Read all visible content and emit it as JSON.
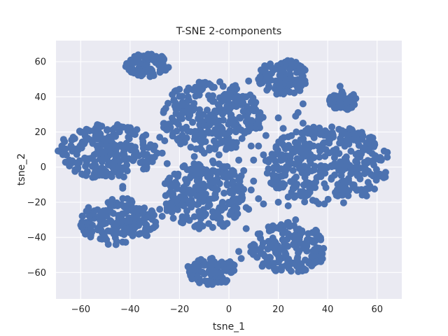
{
  "chart_data": {
    "type": "scatter",
    "title": "T-SNE 2-components",
    "xlabel": "tsne_1",
    "ylabel": "tsne_2",
    "xlim": [
      -70,
      70
    ],
    "ylim": [
      -75,
      72
    ],
    "xticks": [
      -60,
      -40,
      -20,
      0,
      20,
      40,
      60
    ],
    "yticks": [
      -60,
      -40,
      -20,
      0,
      20,
      40,
      60
    ],
    "grid": true,
    "legend": "none",
    "background_color": "#eaeaf2",
    "point_color": "#4c72b0",
    "clusters": [
      {
        "cx": -33,
        "cy": 58,
        "rx": 8,
        "ry": 6
      },
      {
        "cx": -49,
        "cy": 9,
        "rx": 18,
        "ry": 14
      },
      {
        "cx": -45,
        "cy": -31,
        "rx": 14,
        "ry": 12
      },
      {
        "cx": -7,
        "cy": 29,
        "rx": 19,
        "ry": 18
      },
      {
        "cx": -10,
        "cy": -16,
        "rx": 15,
        "ry": 18
      },
      {
        "cx": -7,
        "cy": -59,
        "rx": 9,
        "ry": 7
      },
      {
        "cx": 22,
        "cy": 51,
        "rx": 9,
        "ry": 9
      },
      {
        "cx": 46,
        "cy": 38,
        "rx": 5,
        "ry": 5
      },
      {
        "cx": 40,
        "cy": 1,
        "rx": 23,
        "ry": 20
      },
      {
        "cx": 24,
        "cy": -46,
        "rx": 14,
        "ry": 13
      }
    ],
    "bridge_points": [
      [
        -28,
        17
      ],
      [
        -30,
        12
      ],
      [
        -27,
        8
      ],
      [
        -25,
        2
      ],
      [
        -22,
        -4
      ],
      [
        -24,
        -10
      ],
      [
        -28,
        -24
      ],
      [
        -27,
        -28
      ],
      [
        -43,
        -11
      ],
      [
        -43,
        -12
      ],
      [
        -21,
        -10
      ],
      [
        -14,
        6
      ],
      [
        -10,
        8
      ],
      [
        -4,
        7
      ],
      [
        4,
        4
      ],
      [
        5,
        -5
      ],
      [
        6,
        -2
      ],
      [
        10,
        4
      ],
      [
        10,
        -8
      ],
      [
        12,
        12
      ],
      [
        14,
        7
      ],
      [
        15,
        18
      ],
      [
        11,
        22
      ],
      [
        7,
        40
      ],
      [
        8,
        49
      ],
      [
        12,
        -18
      ],
      [
        14,
        -21
      ],
      [
        20,
        -20
      ],
      [
        24,
        -17
      ],
      [
        21,
        -10
      ],
      [
        26,
        -12
      ],
      [
        30,
        -14
      ],
      [
        24,
        -22
      ],
      [
        20,
        28
      ],
      [
        22,
        22
      ],
      [
        28,
        31
      ],
      [
        27,
        29
      ],
      [
        30,
        36
      ],
      [
        32,
        22
      ],
      [
        33,
        20
      ],
      [
        -16,
        -13
      ],
      [
        -19,
        -13
      ],
      [
        0,
        42
      ],
      [
        4,
        -7
      ],
      [
        9,
        -13
      ],
      [
        9,
        12
      ],
      [
        7,
        -23
      ],
      [
        8,
        -24
      ],
      [
        5,
        -52
      ],
      [
        4,
        -48
      ],
      [
        -26,
        15
      ],
      [
        0,
        -5
      ],
      [
        2,
        -12
      ],
      [
        12,
        25
      ],
      [
        16,
        -1
      ],
      [
        16,
        3
      ],
      [
        24,
        -38
      ],
      [
        27,
        -30
      ],
      [
        30,
        25
      ],
      [
        17,
        -9
      ],
      [
        7,
        -35
      ],
      [
        -12,
        41
      ],
      [
        -1,
        -6
      ],
      [
        45,
        46
      ]
    ]
  }
}
